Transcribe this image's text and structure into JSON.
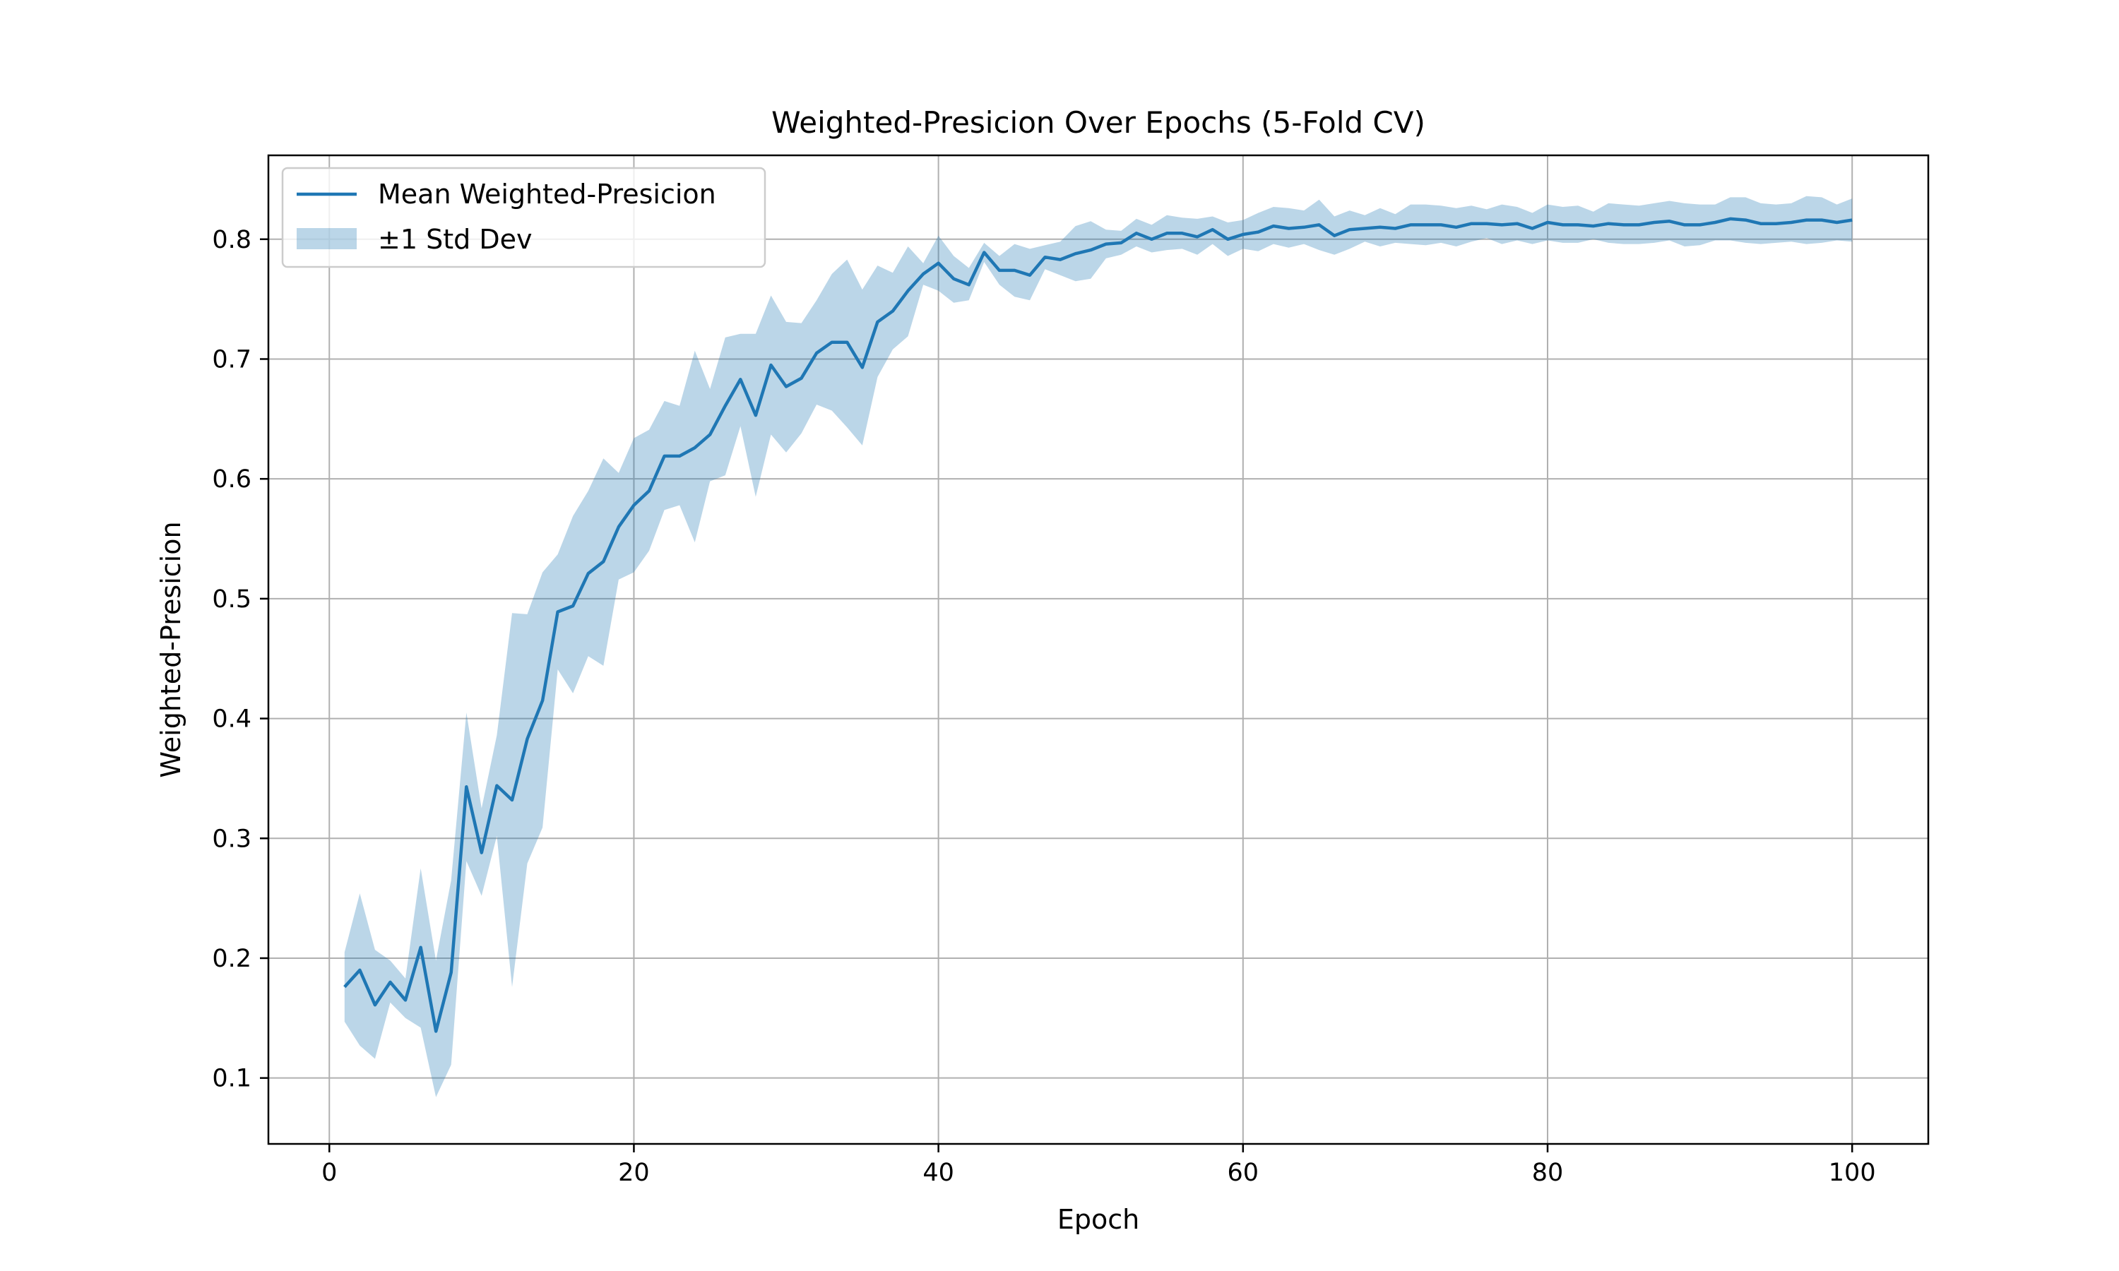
{
  "chart_data": {
    "type": "line",
    "title": "Weighted-Presicion Over Epochs (5-Fold CV)",
    "xlabel": "Epoch",
    "ylabel": "Weighted-Presicion",
    "xlim": [
      -4,
      105
    ],
    "ylim": [
      0.045,
      0.87
    ],
    "xticks": [
      0,
      20,
      40,
      60,
      80,
      100
    ],
    "xtick_labels": [
      "0",
      "20",
      "40",
      "60",
      "80",
      "100"
    ],
    "yticks": [
      0.1,
      0.2,
      0.3,
      0.4,
      0.5,
      0.6,
      0.7,
      0.8
    ],
    "ytick_labels": [
      "0.1",
      "0.2",
      "0.3",
      "0.4",
      "0.5",
      "0.6",
      "0.7",
      "0.8"
    ],
    "grid": true,
    "legend_position": "top-left",
    "colors": {
      "line": "#1f77b4",
      "band": "#1f77b4",
      "band_opacity": 0.3
    },
    "series": [
      {
        "name": "Mean Weighted-Presicion",
        "x": [
          1,
          2,
          3,
          4,
          5,
          6,
          7,
          8,
          9,
          10,
          11,
          12,
          13,
          14,
          15,
          16,
          17,
          18,
          19,
          20,
          21,
          22,
          23,
          24,
          25,
          26,
          27,
          28,
          29,
          30,
          31,
          32,
          33,
          34,
          35,
          36,
          37,
          38,
          39,
          40,
          41,
          42,
          43,
          44,
          45,
          46,
          47,
          48,
          49,
          50,
          51,
          52,
          53,
          54,
          55,
          56,
          57,
          58,
          59,
          60,
          61,
          62,
          63,
          64,
          65,
          66,
          67,
          68,
          69,
          70,
          71,
          72,
          73,
          74,
          75,
          76,
          77,
          78,
          79,
          80,
          81,
          82,
          83,
          84,
          85,
          86,
          87,
          88,
          89,
          90,
          91,
          92,
          93,
          94,
          95,
          96,
          97,
          98,
          99,
          100
        ],
        "values": [
          0.176,
          0.19,
          0.161,
          0.18,
          0.165,
          0.209,
          0.139,
          0.188,
          0.343,
          0.288,
          0.344,
          0.332,
          0.383,
          0.415,
          0.489,
          0.494,
          0.521,
          0.531,
          0.56,
          0.578,
          0.59,
          0.619,
          0.619,
          0.626,
          0.637,
          0.661,
          0.683,
          0.653,
          0.695,
          0.677,
          0.684,
          0.705,
          0.714,
          0.714,
          0.693,
          0.731,
          0.74,
          0.757,
          0.771,
          0.78,
          0.767,
          0.762,
          0.789,
          0.774,
          0.774,
          0.77,
          0.785,
          0.783,
          0.788,
          0.791,
          0.796,
          0.797,
          0.805,
          0.8,
          0.805,
          0.805,
          0.802,
          0.808,
          0.8,
          0.804,
          0.806,
          0.811,
          0.809,
          0.81,
          0.812,
          0.803,
          0.808,
          0.809,
          0.81,
          0.809,
          0.812,
          0.812,
          0.812,
          0.81,
          0.813,
          0.813,
          0.812,
          0.813,
          0.809,
          0.814,
          0.812,
          0.812,
          0.811,
          0.813,
          0.812,
          0.812,
          0.814,
          0.815,
          0.812,
          0.812,
          0.814,
          0.817,
          0.816,
          0.813,
          0.813,
          0.814,
          0.816,
          0.816,
          0.814,
          0.816
        ]
      },
      {
        "name": "±1 Std Dev",
        "type": "band",
        "x": [
          1,
          2,
          3,
          4,
          5,
          6,
          7,
          8,
          9,
          10,
          11,
          12,
          13,
          14,
          15,
          16,
          17,
          18,
          19,
          20,
          21,
          22,
          23,
          24,
          25,
          26,
          27,
          28,
          29,
          30,
          31,
          32,
          33,
          34,
          35,
          36,
          37,
          38,
          39,
          40,
          41,
          42,
          43,
          44,
          45,
          46,
          47,
          48,
          49,
          50,
          51,
          52,
          53,
          54,
          55,
          56,
          57,
          58,
          59,
          60,
          61,
          62,
          63,
          64,
          65,
          66,
          67,
          68,
          69,
          70,
          71,
          72,
          73,
          74,
          75,
          76,
          77,
          78,
          79,
          80,
          81,
          82,
          83,
          84,
          85,
          86,
          87,
          88,
          89,
          90,
          91,
          92,
          93,
          94,
          95,
          96,
          97,
          98,
          99,
          100
        ],
        "upper": [
          0.205,
          0.254,
          0.207,
          0.198,
          0.183,
          0.275,
          0.198,
          0.265,
          0.405,
          0.325,
          0.386,
          0.488,
          0.487,
          0.522,
          0.537,
          0.569,
          0.59,
          0.617,
          0.605,
          0.634,
          0.641,
          0.665,
          0.661,
          0.707,
          0.675,
          0.718,
          0.721,
          0.721,
          0.753,
          0.731,
          0.73,
          0.749,
          0.771,
          0.783,
          0.758,
          0.778,
          0.772,
          0.794,
          0.78,
          0.803,
          0.786,
          0.776,
          0.797,
          0.786,
          0.796,
          0.792,
          0.795,
          0.798,
          0.811,
          0.815,
          0.808,
          0.807,
          0.817,
          0.812,
          0.82,
          0.818,
          0.817,
          0.819,
          0.814,
          0.816,
          0.822,
          0.827,
          0.826,
          0.824,
          0.833,
          0.819,
          0.824,
          0.82,
          0.826,
          0.821,
          0.829,
          0.829,
          0.828,
          0.826,
          0.828,
          0.825,
          0.829,
          0.827,
          0.822,
          0.829,
          0.827,
          0.828,
          0.823,
          0.83,
          0.829,
          0.828,
          0.83,
          0.832,
          0.83,
          0.829,
          0.829,
          0.835,
          0.835,
          0.83,
          0.829,
          0.83,
          0.836,
          0.835,
          0.829,
          0.834
        ],
        "lower": [
          0.147,
          0.127,
          0.116,
          0.163,
          0.15,
          0.142,
          0.084,
          0.111,
          0.281,
          0.252,
          0.302,
          0.176,
          0.279,
          0.309,
          0.441,
          0.421,
          0.452,
          0.444,
          0.516,
          0.522,
          0.54,
          0.574,
          0.578,
          0.547,
          0.598,
          0.603,
          0.644,
          0.585,
          0.637,
          0.622,
          0.638,
          0.662,
          0.657,
          0.643,
          0.628,
          0.685,
          0.708,
          0.719,
          0.762,
          0.757,
          0.747,
          0.749,
          0.781,
          0.762,
          0.752,
          0.749,
          0.775,
          0.77,
          0.765,
          0.767,
          0.784,
          0.787,
          0.794,
          0.789,
          0.791,
          0.792,
          0.787,
          0.796,
          0.786,
          0.792,
          0.79,
          0.796,
          0.793,
          0.796,
          0.791,
          0.787,
          0.792,
          0.798,
          0.794,
          0.797,
          0.796,
          0.795,
          0.797,
          0.794,
          0.798,
          0.801,
          0.796,
          0.799,
          0.796,
          0.799,
          0.797,
          0.797,
          0.8,
          0.797,
          0.796,
          0.796,
          0.797,
          0.799,
          0.794,
          0.795,
          0.799,
          0.799,
          0.797,
          0.796,
          0.797,
          0.798,
          0.796,
          0.797,
          0.799,
          0.798
        ]
      }
    ]
  }
}
